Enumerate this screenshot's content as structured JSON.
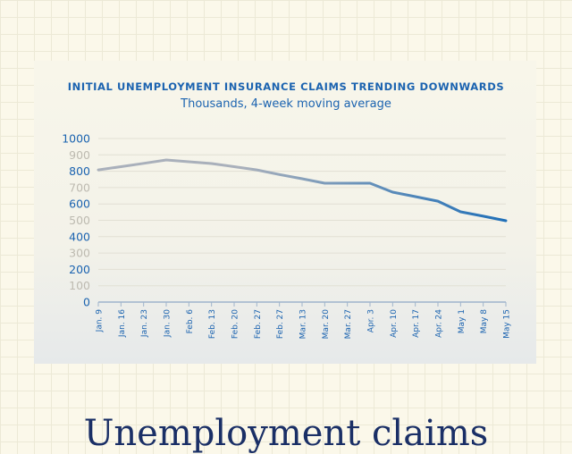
{
  "chart_data": {
    "type": "line",
    "title": "INITIAL UNEMPLOYMENT INSURANCE CLAIMS TRENDING DOWNWARDS",
    "subtitle": "Thousands, 4-week moving average",
    "categories": [
      "Jan. 9",
      "Jan. 16",
      "Jan. 23",
      "Jan. 30",
      "Feb. 6",
      "Feb. 13",
      "Feb. 20",
      "Feb. 27",
      "Feb. 27",
      "Mar. 13",
      "Mar. 20",
      "Mar. 27",
      "Apr. 3",
      "Apr. 10",
      "Apr. 17",
      "Apr. 24",
      "May 1",
      "May 8",
      "May 15"
    ],
    "values": [
      808,
      828,
      848,
      869,
      858,
      847,
      828,
      808,
      780,
      754,
      727,
      727,
      727,
      672,
      645,
      617,
      552,
      525,
      497
    ],
    "yticks": [
      "0",
      "100",
      "200",
      "300",
      "400",
      "500",
      "600",
      "700",
      "800",
      "900",
      "1000"
    ],
    "ylim": [
      0,
      1000
    ],
    "grid": true,
    "colors": {
      "line_start": "#a9b0bb",
      "line_end": "#1f6fb8",
      "tick_blue": "#1b63b0",
      "tick_gray": "#bdbab0"
    }
  },
  "bottom_heading": "Unemployment claims"
}
